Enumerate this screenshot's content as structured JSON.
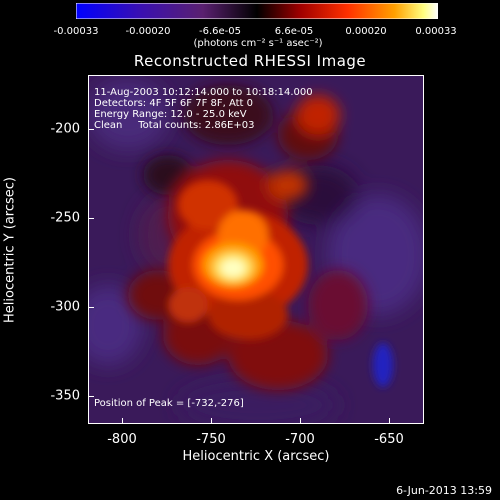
{
  "colorbar": {
    "ticks": [
      "-0.00033",
      "-0.00020",
      "-6.6e-05",
      "6.6e-05",
      "0.00020",
      "0.00033"
    ],
    "units": "(photons cm⁻² s⁻¹ asec⁻²)",
    "colors": [
      "#0000ff",
      "#4b0082",
      "#7030a0",
      "#000000",
      "#c00000",
      "#ff4000",
      "#ffa000",
      "#ffff80",
      "#ffffff"
    ]
  },
  "title": "Reconstructed RHESSI Image",
  "info": {
    "line1": "11-Aug-2003 10:12:14.000 to 10:18:14.000",
    "line2": "Detectors: 4F 5F 6F 7F 8F, Att 0",
    "line3": "Energy Range: 12.0 - 25.0 keV",
    "line4": "Clean     Total counts: 2.86E+03",
    "peak": "Position of Peak = [-732,-276]"
  },
  "axes": {
    "xlabel": "Heliocentric X (arcsec)",
    "ylabel": "Heliocentric Y (arcsec)",
    "xticks": [
      "-800",
      "-750",
      "-700",
      "-650"
    ],
    "yticks": [
      "-200",
      "-250",
      "-300",
      "-350"
    ]
  },
  "datestamp": "6-Jun-2013 13:59"
}
